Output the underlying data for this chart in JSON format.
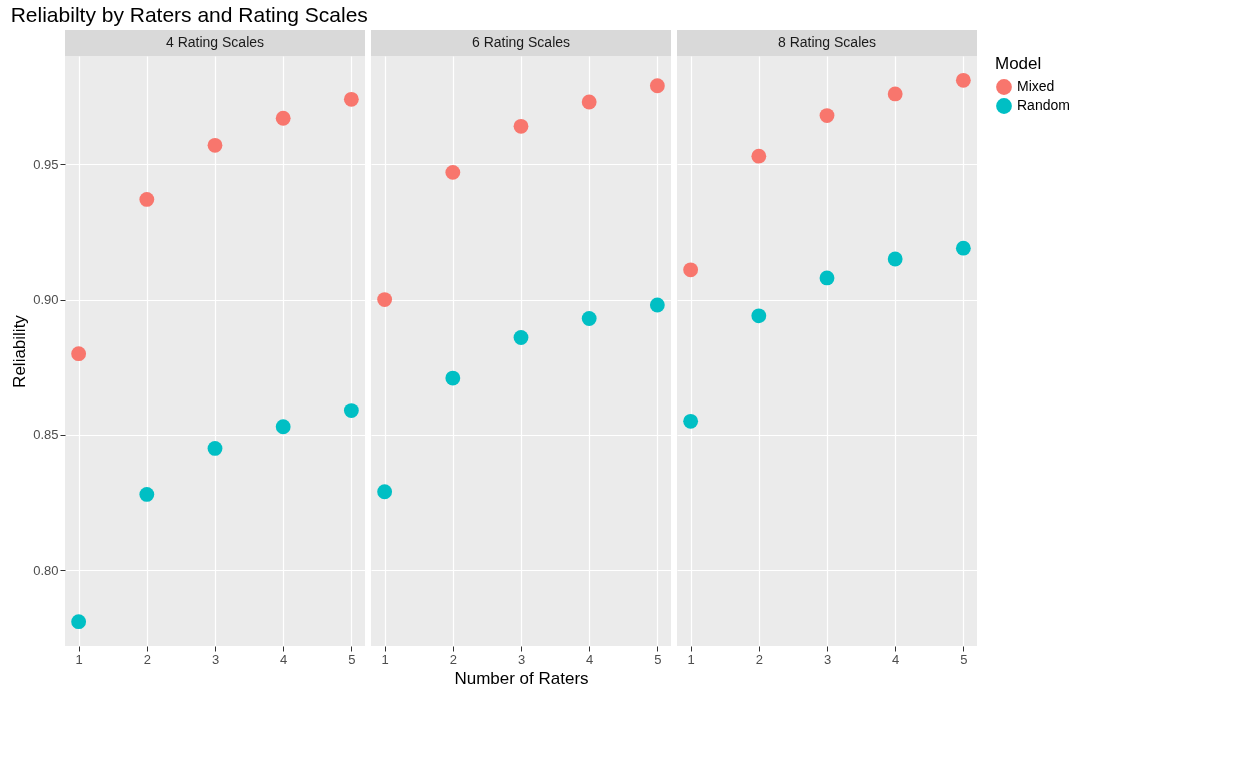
{
  "chart_data": [
    {
      "type": "scatter",
      "title": "Reliabilty by Raters and Rating Scales",
      "subtitle": "4 Rating Scales",
      "ylabel": "Reliability",
      "x": [
        1,
        2,
        3,
        4,
        5
      ],
      "xlim": [
        0.8,
        5.2
      ],
      "xticks": [
        1,
        2,
        3,
        4,
        5
      ],
      "ylim": [
        0.772,
        0.99
      ],
      "yticks": [
        {
          "value": 0.8,
          "label": "0.80"
        },
        0.85,
        {
          "value": 0.9,
          "label": "0.90"
        },
        0.95
      ],
      "grid": true,
      "marker": "circle",
      "series": [
        {
          "color": "#f8766d",
          "values": [
            0.88,
            0.937,
            0.957,
            0.967,
            0.974
          ]
        },
        {
          "color": "#00bfc4",
          "values": [
            0.781,
            0.828,
            0.845,
            0.853,
            0.859
          ]
        }
      ]
    },
    {
      "type": "scatter",
      "subtitle": "6 Rating Scales",
      "xlabel": "Number of Raters",
      "x": [
        1,
        2,
        3,
        4,
        5
      ],
      "xlim": [
        0.8,
        5.2
      ],
      "xticks": [
        1,
        2,
        3,
        4,
        5
      ],
      "ylim": [
        0.772,
        0.99
      ],
      "yticks": [
        0.8,
        0.85,
        0.9,
        0.95
      ],
      "grid": true,
      "marker": "circle",
      "tick_labels": "x",
      "series": [
        {
          "color": "#f8766d",
          "values": [
            0.9,
            0.947,
            0.964,
            0.973,
            0.979
          ]
        },
        {
          "color": "#00bfc4",
          "values": [
            0.829,
            0.871,
            0.886,
            0.893,
            0.898
          ]
        }
      ]
    },
    {
      "type": "scatter",
      "subtitle": "8 Rating Scales",
      "legend_title": "Model",
      "legend": "right",
      "x": [
        1,
        2,
        3,
        4,
        5
      ],
      "xlim": [
        0.8,
        5.2
      ],
      "xticks": [
        1,
        2,
        3,
        4,
        5
      ],
      "ylim": [
        0.772,
        0.99
      ],
      "yticks": [
        0.8,
        0.85,
        0.9,
        0.95
      ],
      "grid": true,
      "marker": "circle",
      "tick_labels": "x",
      "series": [
        {
          "name": "Mixed",
          "color": "#f8766d",
          "values": [
            0.911,
            0.953,
            0.968,
            0.976,
            0.981
          ]
        },
        {
          "name": "Random",
          "color": "#00bfc4",
          "values": [
            0.855,
            0.894,
            0.908,
            0.915,
            0.919
          ]
        }
      ]
    }
  ]
}
